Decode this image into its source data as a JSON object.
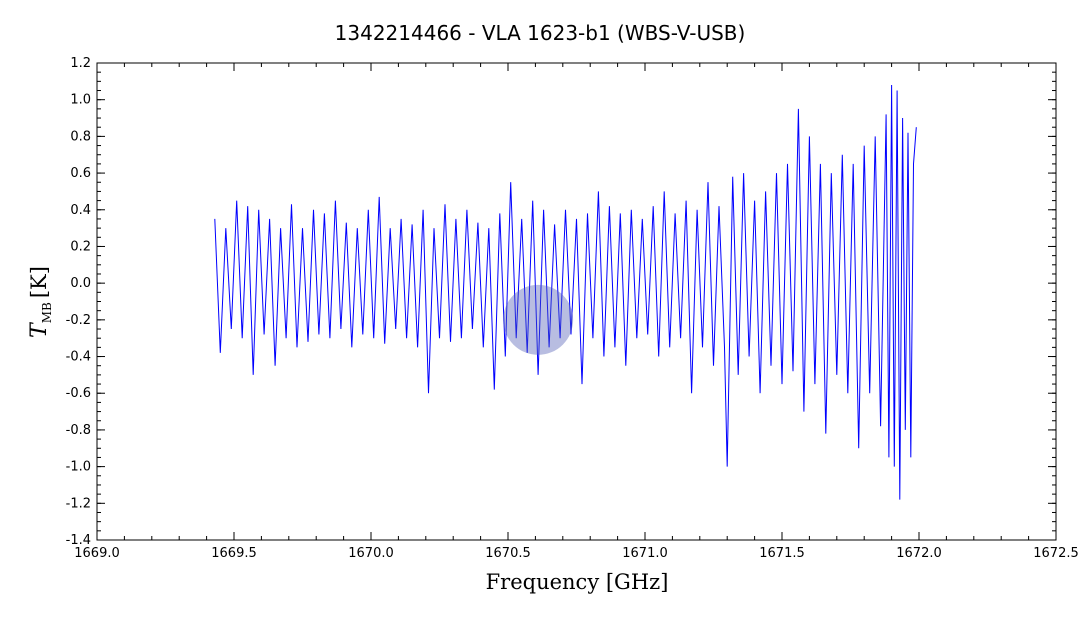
{
  "chart_data": {
    "type": "line",
    "title": "1342214466 - VLA 1623-b1 (WBS-V-USB)",
    "xlabel": "Frequency [GHz]",
    "ylabel": {
      "symbol": "T",
      "subscript": "MB",
      "unit": "[K]"
    },
    "xlim": [
      1669.0,
      1672.5
    ],
    "ylim": [
      -1.4,
      1.2
    ],
    "x_ticks": [
      1669.0,
      1669.5,
      1670.0,
      1670.5,
      1671.0,
      1671.5,
      1672.0,
      1672.5
    ],
    "x_tick_labels": [
      "1669.0",
      "1669.5",
      "1670.0",
      "1670.5",
      "1671.0",
      "1671.5",
      "1672.0",
      "1672.5"
    ],
    "y_ticks": [
      -1.4,
      -1.2,
      -1.0,
      -0.8,
      -0.6,
      -0.4,
      -0.2,
      0.0,
      0.2,
      0.4,
      0.6,
      0.8,
      1.0,
      1.2
    ],
    "y_tick_labels": [
      "-1.4",
      "-1.2",
      "-1.0",
      "-0.8",
      "-0.6",
      "-0.4",
      "-0.2",
      "0.0",
      "0.2",
      "0.4",
      "0.6",
      "0.8",
      "1.0",
      "1.2"
    ],
    "grid": false,
    "series": [
      {
        "color": "#0000ff",
        "x": [
          1669.43,
          1669.45,
          1669.47,
          1669.49,
          1669.51,
          1669.53,
          1669.55,
          1669.57,
          1669.59,
          1669.61,
          1669.63,
          1669.65,
          1669.67,
          1669.69,
          1669.71,
          1669.73,
          1669.75,
          1669.77,
          1669.79,
          1669.81,
          1669.83,
          1669.85,
          1669.87,
          1669.89,
          1669.91,
          1669.93,
          1669.95,
          1669.97,
          1669.99,
          1670.01,
          1670.03,
          1670.05,
          1670.07,
          1670.09,
          1670.11,
          1670.13,
          1670.15,
          1670.17,
          1670.19,
          1670.21,
          1670.23,
          1670.25,
          1670.27,
          1670.29,
          1670.31,
          1670.33,
          1670.35,
          1670.37,
          1670.39,
          1670.41,
          1670.43,
          1670.45,
          1670.47,
          1670.49,
          1670.51,
          1670.53,
          1670.55,
          1670.57,
          1670.59,
          1670.61,
          1670.63,
          1670.65,
          1670.67,
          1670.69,
          1670.71,
          1670.73,
          1670.75,
          1670.77,
          1670.79,
          1670.81,
          1670.83,
          1670.85,
          1670.87,
          1670.89,
          1670.91,
          1670.93,
          1670.95,
          1670.97,
          1670.99,
          1671.01,
          1671.03,
          1671.05,
          1671.07,
          1671.09,
          1671.11,
          1671.13,
          1671.15,
          1671.17,
          1671.19,
          1671.21,
          1671.23,
          1671.25,
          1671.27,
          1671.29,
          1671.3,
          1671.32,
          1671.34,
          1671.36,
          1671.38,
          1671.4,
          1671.42,
          1671.44,
          1671.46,
          1671.48,
          1671.5,
          1671.52,
          1671.54,
          1671.56,
          1671.58,
          1671.6,
          1671.62,
          1671.64,
          1671.66,
          1671.68,
          1671.7,
          1671.72,
          1671.74,
          1671.76,
          1671.78,
          1671.8,
          1671.82,
          1671.84,
          1671.86,
          1671.88,
          1671.89,
          1671.9,
          1671.91,
          1671.92,
          1671.93,
          1671.94,
          1671.95,
          1671.96,
          1671.97,
          1671.98,
          1671.99
        ],
        "y": [
          0.35,
          -0.38,
          0.3,
          -0.25,
          0.45,
          -0.3,
          0.42,
          -0.5,
          0.4,
          -0.28,
          0.35,
          -0.45,
          0.3,
          -0.3,
          0.43,
          -0.35,
          0.3,
          -0.32,
          0.4,
          -0.28,
          0.38,
          -0.3,
          0.45,
          -0.25,
          0.33,
          -0.35,
          0.3,
          -0.28,
          0.4,
          -0.3,
          0.47,
          -0.33,
          0.3,
          -0.25,
          0.35,
          -0.3,
          0.32,
          -0.35,
          0.4,
          -0.6,
          0.3,
          -0.3,
          0.43,
          -0.32,
          0.35,
          -0.3,
          0.4,
          -0.25,
          0.33,
          -0.35,
          0.3,
          -0.58,
          0.38,
          -0.4,
          0.55,
          -0.3,
          0.35,
          -0.38,
          0.45,
          -0.5,
          0.4,
          -0.35,
          0.32,
          -0.3,
          0.4,
          -0.28,
          0.35,
          -0.55,
          0.38,
          -0.3,
          0.5,
          -0.4,
          0.42,
          -0.35,
          0.38,
          -0.45,
          0.4,
          -0.3,
          0.35,
          -0.28,
          0.42,
          -0.4,
          0.5,
          -0.35,
          0.38,
          -0.3,
          0.45,
          -0.6,
          0.4,
          -0.35,
          0.55,
          -0.45,
          0.42,
          -0.35,
          -1.0,
          0.58,
          -0.5,
          0.6,
          -0.4,
          0.45,
          -0.6,
          0.5,
          -0.45,
          0.6,
          -0.55,
          0.65,
          -0.48,
          0.95,
          -0.7,
          0.8,
          -0.55,
          0.65,
          -0.82,
          0.6,
          -0.5,
          0.7,
          -0.6,
          0.65,
          -0.9,
          0.75,
          -0.6,
          0.8,
          -0.78,
          0.92,
          -0.95,
          1.08,
          -1.0,
          1.05,
          -1.18,
          0.9,
          -0.8,
          0.82,
          -0.95,
          0.65,
          0.85
        ]
      }
    ],
    "colors": {
      "axes": "#000000",
      "line": "#0000ff",
      "marker": "#4d5ab3"
    }
  }
}
